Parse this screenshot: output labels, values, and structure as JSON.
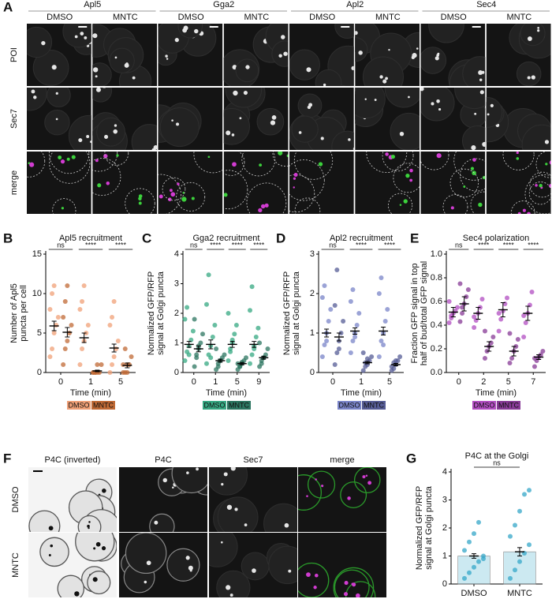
{
  "figure": {
    "panel_a": {
      "letter": "A",
      "proteins": [
        {
          "name": "Apl5",
          "color": "#2fa84f"
        },
        {
          "name": "Gga2",
          "color": "#2fa84f"
        },
        {
          "name": "Apl2",
          "color": "#2fa84f"
        },
        {
          "name": "Sec4",
          "color": "#2fa84f"
        }
      ],
      "conditions": [
        "DMSO",
        "MNTC"
      ],
      "rows": [
        {
          "label": "POI",
          "color": "#2fa84f"
        },
        {
          "label": "Sec7",
          "color": "#d63ad6"
        },
        {
          "label": "merge",
          "color": "#111111"
        }
      ]
    },
    "panel_f": {
      "letter": "F",
      "columns": [
        {
          "label": "P4C (inverted)",
          "color": "#2fa84f"
        },
        {
          "label": "P4C",
          "color": "#2fa84f"
        },
        {
          "label": "Sec7",
          "color": "#d63ad6"
        },
        {
          "label": "merge",
          "color": "#111111"
        }
      ],
      "rows": [
        "DMSO",
        "MNTC"
      ]
    }
  },
  "chart_data": [
    {
      "type": "dot",
      "letter": "B",
      "title": "Apl5 recruitment",
      "y_label": [
        "Number of Apl5",
        "puncta per cell"
      ],
      "x_label": "Time (min)",
      "categories": [
        "0",
        "1",
        "5"
      ],
      "significance": [
        "ns",
        "****",
        "****"
      ],
      "ylim": [
        0,
        15
      ],
      "yticks": [
        0,
        5,
        10,
        15
      ],
      "series": [
        {
          "name": "DMSO",
          "color": "#f0a077",
          "means": [
            5.9,
            4.4,
            3.1
          ],
          "errors": [
            0.6,
            0.6,
            0.5
          ],
          "points": [
            [
              2,
              3,
              5,
              6,
              7,
              8,
              10,
              11
            ],
            [
              1,
              3,
              4,
              5,
              6,
              8,
              9,
              11
            ],
            [
              0,
              1,
              2,
              3,
              4,
              6,
              7,
              9
            ]
          ]
        },
        {
          "name": "MNTC",
          "color": "#c06a35",
          "means": [
            5.1,
            0.2,
            0.9
          ],
          "errors": [
            0.6,
            0.1,
            0.3
          ],
          "points": [
            [
              1,
              3,
              4,
              5,
              6,
              7,
              9,
              11
            ],
            [
              0,
              0,
              0,
              0,
              1,
              0,
              0,
              1
            ],
            [
              0,
              0,
              1,
              1,
              2,
              1,
              3,
              0
            ]
          ]
        }
      ]
    },
    {
      "type": "dot",
      "letter": "C",
      "title": "Gga2 recruitment",
      "y_label": [
        "Normalized GFP/RFP",
        "signal at Golgi puncta"
      ],
      "x_label": "Time (min)",
      "categories": [
        "0",
        "1",
        "5",
        "9"
      ],
      "significance": [
        "ns",
        "****",
        "****",
        "****"
      ],
      "ylim": [
        0,
        4
      ],
      "yticks": [
        0,
        1,
        2,
        3,
        4
      ],
      "series": [
        {
          "name": "DMSO",
          "color": "#36a882",
          "means": [
            0.95,
            0.95,
            0.95,
            0.95
          ],
          "errors": [
            0.1,
            0.15,
            0.1,
            0.1
          ],
          "points": [
            [
              0.4,
              0.7,
              0.9,
              1.1,
              1.4,
              1.8,
              2.2,
              0.6
            ],
            [
              0.3,
              0.6,
              0.9,
              1.2,
              1.6,
              2.3,
              3.3,
              0.5
            ],
            [
              0.4,
              0.7,
              1.0,
              1.3,
              1.6,
              2.0,
              0.8,
              1.1
            ],
            [
              0.3,
              0.6,
              0.9,
              1.2,
              1.5,
              2.1,
              2.9,
              0.8
            ]
          ]
        },
        {
          "name": "MNTC",
          "color": "#2c7560",
          "means": [
            0.8,
            0.4,
            0.3,
            0.5
          ],
          "errors": [
            0.1,
            0.05,
            0.04,
            0.05
          ],
          "points": [
            [
              0.2,
              0.5,
              0.8,
              1.0,
              1.3,
              1.8,
              0.6,
              0.9
            ],
            [
              0.1,
              0.2,
              0.4,
              0.5,
              0.6,
              0.8,
              0.3,
              0.4
            ],
            [
              0.1,
              0.2,
              0.3,
              0.4,
              0.5,
              0.3,
              0.2,
              0.35
            ],
            [
              0.2,
              0.4,
              0.5,
              0.6,
              0.8,
              1.0,
              0.3,
              0.5
            ]
          ]
        }
      ]
    },
    {
      "type": "dot",
      "letter": "D",
      "title": "Apl2 recruitment",
      "y_label": [
        "Normalized GFP/RFP",
        "signal at Golgi puncta"
      ],
      "x_label": "Time (min)",
      "categories": [
        "0",
        "1",
        "5"
      ],
      "significance": [
        "ns",
        "****",
        "****"
      ],
      "ylim": [
        0,
        3
      ],
      "yticks": [
        0,
        1,
        2,
        3
      ],
      "series": [
        {
          "name": "DMSO",
          "color": "#7a84c8",
          "means": [
            1.0,
            1.05,
            1.05
          ],
          "errors": [
            0.1,
            0.08,
            0.1
          ],
          "points": [
            [
              0.4,
              0.7,
              1.0,
              1.3,
              1.6,
              1.9,
              2.2,
              0.8
            ],
            [
              0.5,
              0.8,
              1.0,
              1.2,
              1.5,
              1.8,
              2.1,
              0.9
            ],
            [
              0.4,
              0.8,
              1.0,
              1.3,
              1.6,
              2.0,
              2.4,
              0.7
            ]
          ]
        },
        {
          "name": "MNTC",
          "color": "#565c95",
          "means": [
            0.9,
            0.25,
            0.2
          ],
          "errors": [
            0.1,
            0.03,
            0.03
          ],
          "points": [
            [
              0.2,
              0.5,
              0.8,
              1.0,
              1.3,
              1.7,
              2.6,
              0.6
            ],
            [
              0.05,
              0.15,
              0.2,
              0.3,
              0.4,
              0.5,
              0.25,
              0.35
            ],
            [
              0.05,
              0.1,
              0.2,
              0.3,
              0.4,
              0.15,
              0.25,
              0.3
            ]
          ]
        }
      ]
    },
    {
      "type": "dot",
      "letter": "E",
      "title": "Sec4 polarization",
      "y_label": [
        "Fraction GFP signal in top",
        "half of bud/total GFP signal"
      ],
      "x_label": "Time (min)",
      "categories": [
        "0",
        "2",
        "5",
        "7"
      ],
      "significance": [
        "ns",
        "****",
        "****",
        "****"
      ],
      "ylim": [
        0,
        1
      ],
      "yticks": [
        {
          "value": 0,
          "label": "0.0"
        },
        0.2,
        0.4,
        0.6,
        0.8,
        {
          "value": 1,
          "label": "1.0"
        }
      ],
      "series": [
        {
          "name": "DMSO",
          "color": "#b24ec2",
          "means": [
            0.51,
            0.5,
            0.53,
            0.5
          ],
          "errors": [
            0.04,
            0.05,
            0.06,
            0.06
          ],
          "points": [
            [
              0.42,
              0.46,
              0.5,
              0.52,
              0.55,
              0.6,
              0.48
            ],
            [
              0.38,
              0.44,
              0.5,
              0.55,
              0.62,
              0.47
            ],
            [
              0.35,
              0.45,
              0.52,
              0.58,
              0.63,
              0.5
            ],
            [
              0.3,
              0.42,
              0.5,
              0.57,
              0.68,
              0.48
            ]
          ]
        },
        {
          "name": "MNTC",
          "color": "#873a96",
          "means": [
            0.58,
            0.22,
            0.18,
            0.13
          ],
          "errors": [
            0.06,
            0.04,
            0.04,
            0.02
          ],
          "points": [
            [
              0.43,
              0.5,
              0.58,
              0.64,
              0.7,
              0.75,
              0.55
            ],
            [
              0.12,
              0.18,
              0.22,
              0.25,
              0.3,
              0.35
            ],
            [
              0.08,
              0.12,
              0.18,
              0.22,
              0.28,
              0.33
            ],
            [
              0.05,
              0.1,
              0.13,
              0.15,
              0.18,
              0.12
            ]
          ]
        }
      ]
    },
    {
      "type": "dot",
      "letter": "G",
      "title": "P4C at the Golgi",
      "y_label": [
        "Normalized GFP/RFP",
        "signal at Golgi puncta"
      ],
      "categories": [
        "DMSO",
        "MNTC"
      ],
      "significance": [
        "ns"
      ],
      "ylim": [
        0,
        4
      ],
      "yticks": [
        0,
        1,
        2,
        3,
        4
      ],
      "bars": true,
      "series": [
        {
          "color": "#35a7c8",
          "means": [
            1.0,
            1.15
          ],
          "errors": [
            0.08,
            0.15
          ],
          "points": [
            [
              0.2,
              0.4,
              0.6,
              0.8,
              1.0,
              1.2,
              1.5,
              1.8,
              2.2,
              0.9
            ],
            [
              0.2,
              0.5,
              0.8,
              1.1,
              1.4,
              1.7,
              2.1,
              2.6,
              3.2,
              3.35
            ]
          ]
        }
      ]
    }
  ]
}
